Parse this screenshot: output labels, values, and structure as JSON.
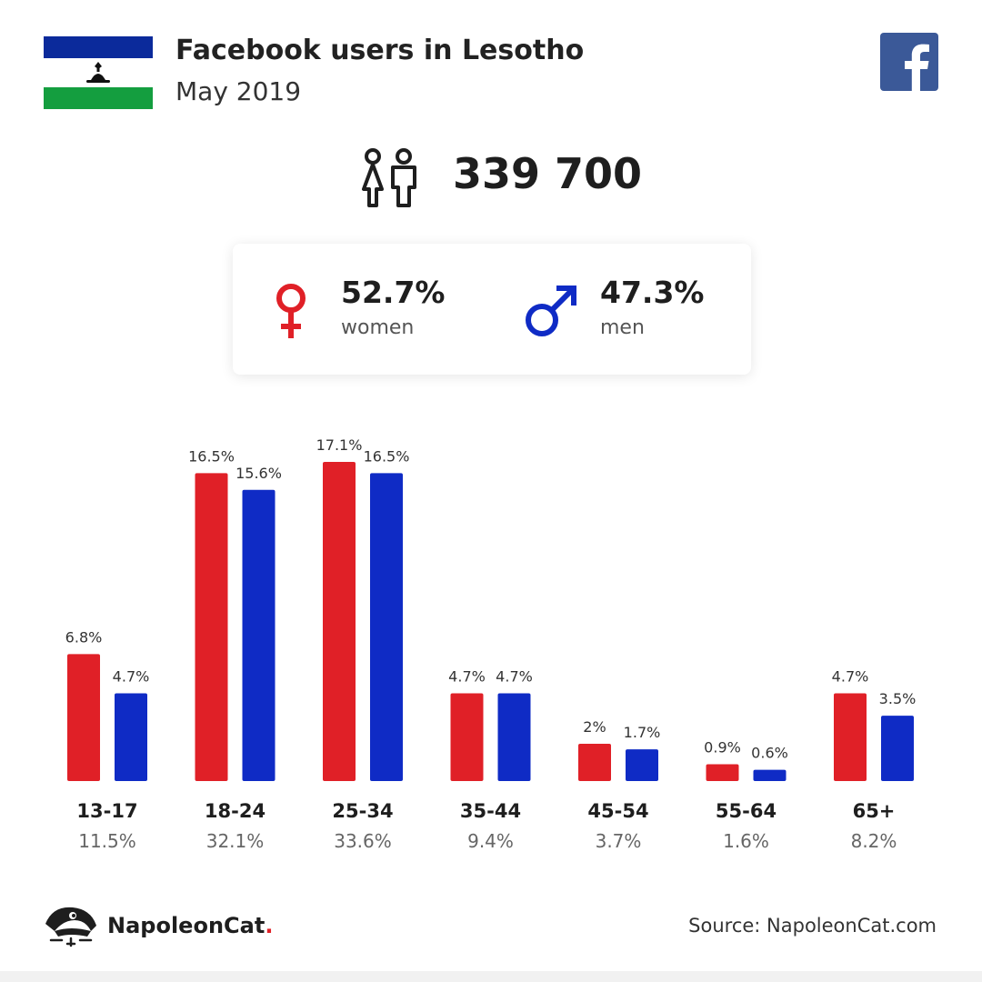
{
  "header": {
    "title": "Facebook users in Lesotho",
    "subtitle": "May 2019"
  },
  "summary": {
    "total_users": "339 700",
    "women_pct": "52.7%",
    "women_label": "women",
    "men_pct": "47.3%",
    "men_label": "men"
  },
  "colors": {
    "women": "#e02027",
    "men": "#0f2bc5",
    "flag_blue": "#0b2a9b",
    "flag_green": "#149e3f",
    "facebook": "#3b5998"
  },
  "chart_data": {
    "type": "bar",
    "categories": [
      "13-17",
      "18-24",
      "25-34",
      "35-44",
      "45-54",
      "55-64",
      "65+"
    ],
    "group_totals": [
      "11.5%",
      "32.1%",
      "33.6%",
      "9.4%",
      "3.7%",
      "1.6%",
      "8.2%"
    ],
    "series": [
      {
        "values": [
          6.8,
          16.5,
          17.1,
          4.7,
          2,
          0.9,
          4.7
        ],
        "labels": [
          "6.8%",
          "16.5%",
          "17.1%",
          "4.7%",
          "2%",
          "0.9%",
          "4.7%"
        ],
        "color": "#e02027"
      },
      {
        "values": [
          4.7,
          15.6,
          16.5,
          4.7,
          1.7,
          0.6,
          3.5
        ],
        "labels": [
          "4.7%",
          "15.6%",
          "16.5%",
          "4.7%",
          "1.7%",
          "0.6%",
          "3.5%"
        ],
        "color": "#0f2bc5"
      }
    ],
    "ylim": [
      0,
      17.1
    ],
    "grid": false
  },
  "footer": {
    "brand": "NapoleonCat",
    "brand_dot": ".",
    "source": "Source: NapoleonCat.com"
  },
  "icons": {
    "flag": "lesotho-flag-icon",
    "facebook": "facebook-logo-icon",
    "people": "people-icon",
    "female": "female-symbol-icon",
    "male": "male-symbol-icon",
    "brand": "napoleoncat-logo-icon"
  }
}
